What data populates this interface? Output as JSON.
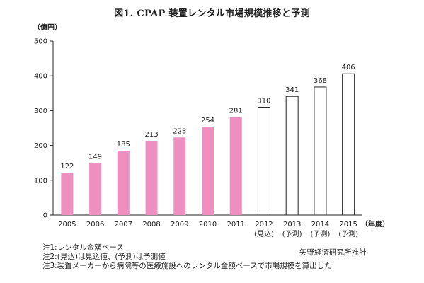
{
  "chart_data": {
    "type": "bar",
    "title": "図1. CPAP 装置レンタル市場規模推移と予測",
    "ylabel": "（億円）",
    "xlabel": "（年度）",
    "ylim": [
      0,
      500
    ],
    "yticks": [
      0,
      100,
      200,
      300,
      400,
      500
    ],
    "categories": [
      "2005",
      "2006",
      "2007",
      "2008",
      "2009",
      "2010",
      "2011",
      "2012",
      "2013",
      "2014",
      "2015"
    ],
    "sublabels": [
      "",
      "",
      "",
      "",
      "",
      "",
      "",
      "(見込)",
      "(予測)",
      "(予測)",
      "(予測)"
    ],
    "values": [
      122,
      149,
      185,
      213,
      223,
      254,
      281,
      310,
      341,
      368,
      406
    ],
    "styles": [
      "actual",
      "actual",
      "actual",
      "actual",
      "actual",
      "actual",
      "actual",
      "forecast",
      "forecast",
      "forecast",
      "forecast"
    ],
    "grid": false,
    "colors": {
      "actual": "#ef8fbf",
      "forecast": "#ffffff",
      "stroke": "#222222"
    }
  },
  "notes": [
    "注1:レンタル金額ベース",
    "注2:(見込)は見込値、(予測)は予測値",
    "注3:装置メーカーから病院等の医療施設へのレンタル金額ベースで市場規模を算出した"
  ],
  "source": "矢野経済研究所推計"
}
